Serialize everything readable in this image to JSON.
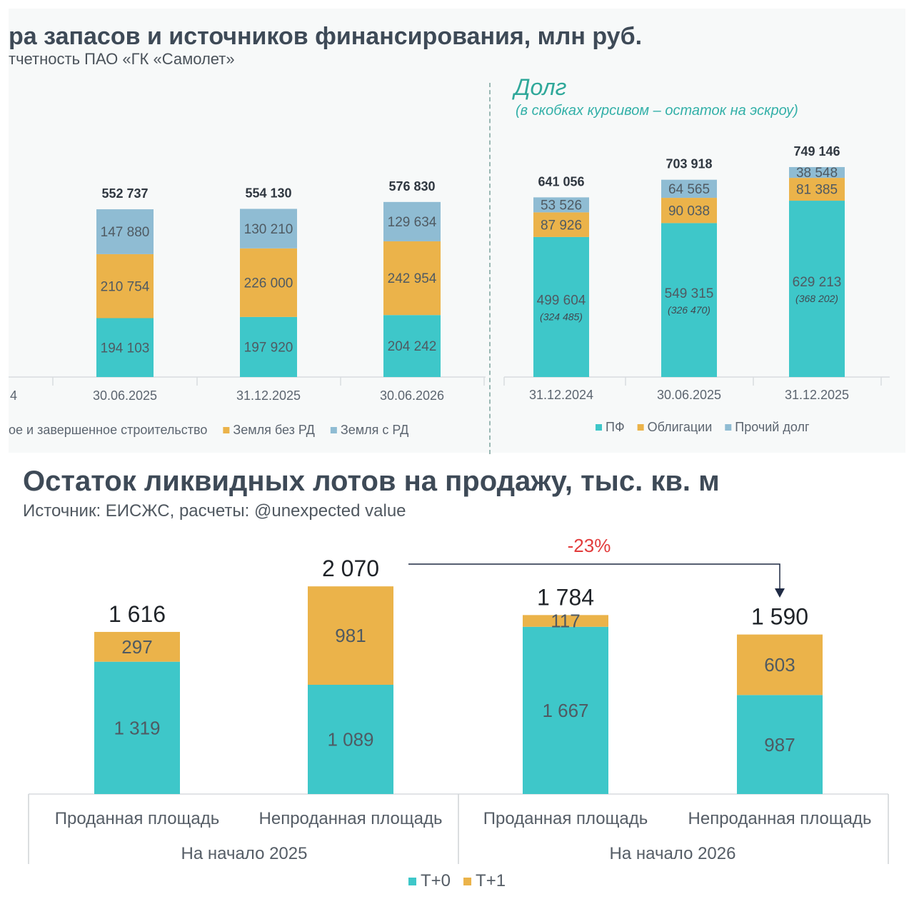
{
  "top": {
    "title": "ра запасов и источников финансирования, млн руб.",
    "subtitle": "тчетность ПАО «ГК «Самолет»",
    "debt_title": "Долг",
    "debt_subtitle": "(в скобках курсивом – остаток на эскроу)"
  },
  "bottom": {
    "title": "Остаток ликвидных лотов на продажу, тыс. кв. м",
    "subtitle": "Источник: ЕИСЖС, расчеты: @unexpected value"
  },
  "colors": {
    "teal": "#3ec7c9",
    "orange": "#ebb34a",
    "blue": "#8fbcd3",
    "bg_top": "#f7f9f9",
    "red": "#e23b3b"
  },
  "chart_data": [
    {
      "type": "bar",
      "stacked": true,
      "categories": [
        "30.06.2025",
        "31.12.2025",
        "30.06.2026"
      ],
      "cropped_left_tick": "4",
      "series": [
        {
          "name": "ое и завершенное строительство",
          "values": [
            194103,
            197920,
            204242
          ],
          "labels": [
            "194 103",
            "197 920",
            "204 242"
          ],
          "color": "teal"
        },
        {
          "name": "Земля без РД",
          "values": [
            210754,
            226000,
            242954
          ],
          "labels": [
            "210 754",
            "226 000",
            "242 954"
          ],
          "color": "orange"
        },
        {
          "name": "Земля с РД",
          "values": [
            147880,
            130210,
            129634
          ],
          "labels": [
            "147 880",
            "130 210",
            "129 634"
          ],
          "color": "blue"
        }
      ],
      "totals": [
        "552 737",
        "554 130",
        "576 830"
      ],
      "total_values": [
        552737,
        554130,
        576830
      ],
      "ylim": [
        0,
        720000
      ],
      "legend_position": "bottom"
    },
    {
      "type": "bar",
      "stacked": true,
      "categories": [
        "31.12.2024",
        "30.06.2025",
        "31.12.2025"
      ],
      "series": [
        {
          "name": "ПФ",
          "values": [
            499604,
            549315,
            629213
          ],
          "labels": [
            "499 604",
            "549 315",
            "629 213"
          ],
          "color": "teal"
        },
        {
          "name": "Облигации",
          "values": [
            87926,
            90038,
            81385
          ],
          "labels": [
            "87 926",
            "90 038",
            "81 385"
          ],
          "color": "orange"
        },
        {
          "name": "Прочий долг",
          "values": [
            53526,
            64565,
            38548
          ],
          "labels": [
            "53 526",
            "64 565",
            "38 548"
          ],
          "color": "blue"
        }
      ],
      "escrow": [
        "(324 485)",
        "(326 470)",
        "(368 202)"
      ],
      "escrow_values": [
        324485,
        326470,
        368202
      ],
      "totals": [
        "641 056",
        "703 918",
        "749 146"
      ],
      "total_values": [
        641056,
        703918,
        749146
      ],
      "ylim": [
        0,
        800000
      ],
      "legend_position": "bottom"
    },
    {
      "type": "bar",
      "stacked": true,
      "categories": [
        "Проданная площадь",
        "Непроданная площадь",
        "Проданная площадь",
        "Непроданная площадь"
      ],
      "groups": [
        {
          "label": "На начало 2025",
          "span": 2
        },
        {
          "label": "На начало 2026",
          "span": 2
        }
      ],
      "series": [
        {
          "name": "Т+0",
          "values": [
            1319,
            1089,
            1667,
            987
          ],
          "labels": [
            "1 319",
            "1 089",
            "1 667",
            "987"
          ],
          "color": "teal"
        },
        {
          "name": "Т+1",
          "values": [
            297,
            981,
            117,
            603
          ],
          "labels": [
            "297",
            "981",
            "117",
            "603"
          ],
          "color": "orange"
        }
      ],
      "totals": [
        "1 616",
        "2 070",
        "1 784",
        "1 590"
      ],
      "total_values": [
        1616,
        2070,
        1784,
        1590
      ],
      "annotation": {
        "text": "-23%",
        "from_index": 1,
        "to_index": 3
      },
      "ylim": [
        0,
        2400
      ],
      "legend_position": "bottom"
    }
  ]
}
